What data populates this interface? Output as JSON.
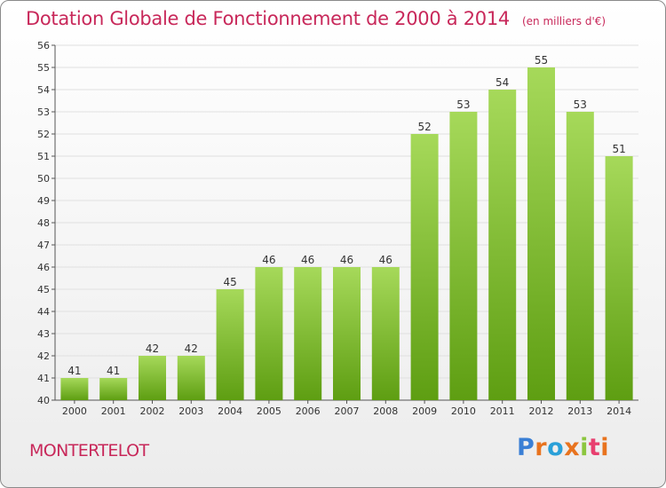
{
  "header": {
    "title": "Dotation Globale de Fonctionnement de 2000 à 2014",
    "subtitle": "(en milliers d'€)"
  },
  "footer": {
    "commune": "MONTERTELOT",
    "logo_text": "Proxiti"
  },
  "colors": {
    "title": "#c8285a",
    "bar_top": "#a6d95a",
    "bar_bottom": "#5e9e12",
    "grid": "#e0e0e0"
  },
  "chart_data": {
    "type": "bar",
    "categories": [
      "2000",
      "2001",
      "2002",
      "2003",
      "2004",
      "2005",
      "2006",
      "2007",
      "2008",
      "2009",
      "2010",
      "2011",
      "2012",
      "2013",
      "2014"
    ],
    "values": [
      41,
      41,
      42,
      42,
      45,
      46,
      46,
      46,
      46,
      52,
      53,
      54,
      55,
      53,
      51
    ],
    "title": "Dotation Globale de Fonctionnement de 2000 à 2014",
    "subtitle": "(en milliers d'€)",
    "xlabel": "",
    "ylabel": "",
    "ylim": [
      40,
      56
    ],
    "yticks": [
      40,
      41,
      42,
      43,
      44,
      45,
      46,
      47,
      48,
      49,
      50,
      51,
      52,
      53,
      54,
      55,
      56
    ],
    "grid": true,
    "legend": "none"
  }
}
